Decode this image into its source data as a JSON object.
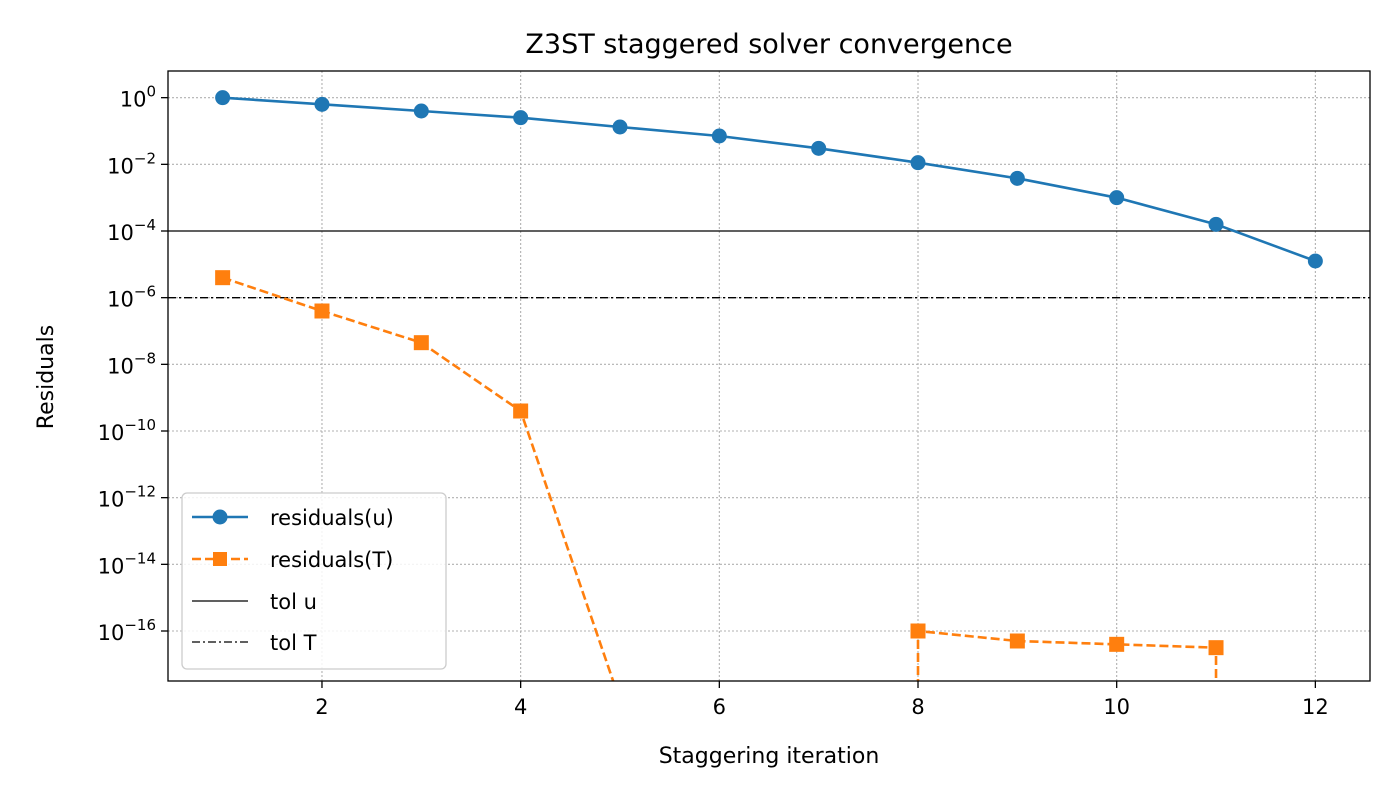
{
  "chart_data": {
    "type": "line",
    "title": "Z3ST staggered solver convergence",
    "xlabel": "Staggering iteration",
    "ylabel": "Residuals",
    "yscale": "log",
    "xlim": [
      0.45,
      12.55
    ],
    "ylim_log10": [
      -17.5,
      0.8
    ],
    "xticks": [
      2,
      4,
      6,
      8,
      10,
      12
    ],
    "yticks_exp": [
      0,
      -2,
      -4,
      -6,
      -8,
      -10,
      -12,
      -14,
      -16
    ],
    "ytick_base": "10",
    "grid": true,
    "legend_location": "lower-left",
    "series": [
      {
        "name": "residuals(u)",
        "color": "#1f77b4",
        "style": "solid",
        "marker": "circle",
        "x": [
          1,
          2,
          3,
          4,
          5,
          6,
          7,
          8,
          9,
          10,
          11,
          12
        ],
        "log10_y": [
          0.0,
          -0.2,
          -0.4,
          -0.6,
          -0.88,
          -1.15,
          -1.52,
          -1.95,
          -2.42,
          -3.0,
          -3.8,
          -4.9
        ]
      },
      {
        "name": "residuals(T)",
        "color": "#ff7f0e",
        "style": "dashed",
        "marker": "square",
        "x": [
          1,
          2,
          3,
          4,
          5,
          6,
          7,
          8,
          9,
          10,
          11
        ],
        "log10_y": [
          -5.4,
          -6.4,
          -7.35,
          -9.4,
          null,
          null,
          null,
          -16.0,
          -16.3,
          -16.4,
          -16.5
        ]
      }
    ],
    "reference_lines": [
      {
        "name": "tol u",
        "log10_y": -4,
        "style": "solid",
        "color": "#000000"
      },
      {
        "name": "tol T",
        "log10_y": -6,
        "style": "dashdot",
        "color": "#000000"
      }
    ]
  }
}
